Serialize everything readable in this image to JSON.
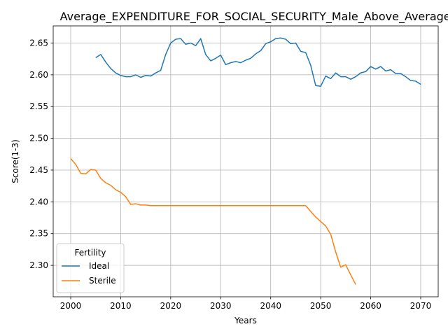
{
  "chart_data": {
    "type": "line",
    "title": "Average_EXPENDITURE_FOR_SOCIAL_SECURITY_Male_Above_Average_I",
    "xlabel": "Years",
    "ylabel": "Score(1-3)",
    "xlim": [
      1996.5,
      2073.5
    ],
    "ylim": [
      2.2505,
      2.677
    ],
    "grid": true,
    "xticks": [
      2000,
      2010,
      2020,
      2030,
      2040,
      2050,
      2060,
      2070
    ],
    "xtick_labels": [
      "2000",
      "2010",
      "2020",
      "2030",
      "2040",
      "2050",
      "2060",
      "2070"
    ],
    "yticks": [
      2.3,
      2.35,
      2.4,
      2.45,
      2.5,
      2.55,
      2.6,
      2.65
    ],
    "ytick_labels": [
      "2.30",
      "2.35",
      "2.40",
      "2.45",
      "2.50",
      "2.55",
      "2.60",
      "2.65"
    ],
    "legend": {
      "title": "Fertility",
      "position": "lower-left"
    },
    "series": [
      {
        "name": "Ideal",
        "color": "#1f77b4",
        "x": [
          2005,
          2006,
          2007,
          2008,
          2009,
          2010,
          2011,
          2012,
          2013,
          2014,
          2015,
          2016,
          2017,
          2018,
          2019,
          2020,
          2021,
          2022,
          2023,
          2024,
          2025,
          2026,
          2027,
          2028,
          2029,
          2030,
          2031,
          2032,
          2033,
          2034,
          2035,
          2036,
          2037,
          2038,
          2039,
          2040,
          2041,
          2042,
          2043,
          2044,
          2045,
          2046,
          2047,
          2048,
          2049,
          2050,
          2051,
          2052,
          2053,
          2054,
          2055,
          2056,
          2057,
          2058,
          2059,
          2060,
          2061,
          2062,
          2063,
          2064,
          2065,
          2066,
          2067,
          2068,
          2069,
          2070
        ],
        "values": [
          2.627,
          2.632,
          2.62,
          2.61,
          2.603,
          2.599,
          2.597,
          2.597,
          2.6,
          2.596,
          2.599,
          2.598,
          2.603,
          2.607,
          2.632,
          2.65,
          2.656,
          2.657,
          2.648,
          2.65,
          2.646,
          2.657,
          2.632,
          2.622,
          2.626,
          2.631,
          2.616,
          2.619,
          2.621,
          2.619,
          2.623,
          2.626,
          2.633,
          2.638,
          2.649,
          2.652,
          2.657,
          2.658,
          2.656,
          2.649,
          2.65,
          2.637,
          2.635,
          2.615,
          2.583,
          2.582,
          2.598,
          2.594,
          2.603,
          2.597,
          2.597,
          2.593,
          2.597,
          2.603,
          2.605,
          2.613,
          2.609,
          2.613,
          2.606,
          2.608,
          2.602,
          2.602,
          2.597,
          2.591,
          2.59,
          2.585
        ]
      },
      {
        "name": "Sterile",
        "color": "#ff7f0e",
        "x": [
          2000,
          2001,
          2002,
          2003,
          2004,
          2005,
          2006,
          2007,
          2008,
          2009,
          2010,
          2011,
          2012,
          2013,
          2014,
          2015,
          2016,
          2017,
          2018,
          2019,
          2020,
          2021,
          2022,
          2023,
          2024,
          2025,
          2026,
          2027,
          2028,
          2029,
          2030,
          2031,
          2032,
          2033,
          2034,
          2035,
          2036,
          2037,
          2038,
          2039,
          2040,
          2041,
          2042,
          2043,
          2044,
          2045,
          2046,
          2047,
          2048,
          2049,
          2050,
          2051,
          2052,
          2053,
          2054,
          2055,
          2056,
          2057
        ],
        "values": [
          2.468,
          2.459,
          2.445,
          2.444,
          2.451,
          2.45,
          2.437,
          2.43,
          2.426,
          2.419,
          2.415,
          2.408,
          2.396,
          2.397,
          2.395,
          2.395,
          2.394,
          2.394,
          2.394,
          2.394,
          2.394,
          2.394,
          2.394,
          2.394,
          2.394,
          2.394,
          2.394,
          2.394,
          2.394,
          2.394,
          2.394,
          2.394,
          2.394,
          2.394,
          2.394,
          2.394,
          2.394,
          2.394,
          2.394,
          2.394,
          2.394,
          2.394,
          2.394,
          2.394,
          2.394,
          2.394,
          2.394,
          2.394,
          2.385,
          2.376,
          2.369,
          2.362,
          2.349,
          2.321,
          2.297,
          2.301,
          2.285,
          2.27
        ]
      }
    ]
  }
}
